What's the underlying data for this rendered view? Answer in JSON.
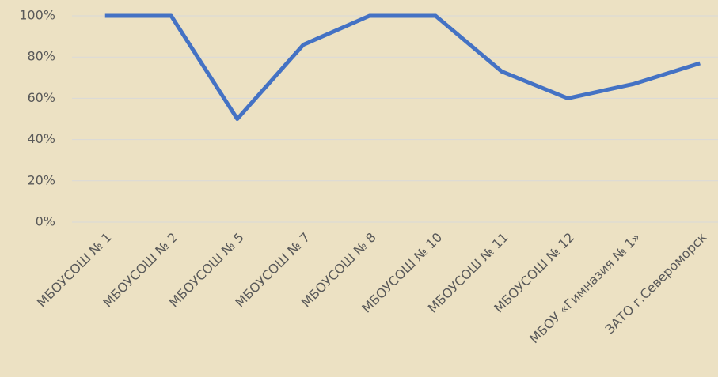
{
  "chart_data": {
    "type": "line",
    "categories": [
      "МБОУСОШ № 1",
      "МБОУСОШ № 2",
      "МБОУСОШ № 5",
      "МБОУСОШ № 7",
      "МБОУСОШ № 8",
      "МБОУСОШ № 10",
      "МБОУСОШ № 11",
      "МБОУСОШ № 12",
      "МБОУ «Гимназия № 1»",
      "ЗАТО г.Североморск"
    ],
    "series": [
      {
        "color": "#4472c4",
        "values": [
          100,
          100,
          50,
          86,
          100,
          100,
          73,
          60,
          67,
          77
        ]
      }
    ],
    "ylim": [
      0,
      100
    ],
    "yticks": [
      {
        "value": 0,
        "label": "0%"
      },
      {
        "value": 20,
        "label": "20%"
      },
      {
        "value": 40,
        "label": "40%"
      },
      {
        "value": 60,
        "label": "60%"
      },
      {
        "value": 80,
        "label": "80%"
      },
      {
        "value": 100,
        "label": "100%"
      }
    ],
    "grid": true
  }
}
